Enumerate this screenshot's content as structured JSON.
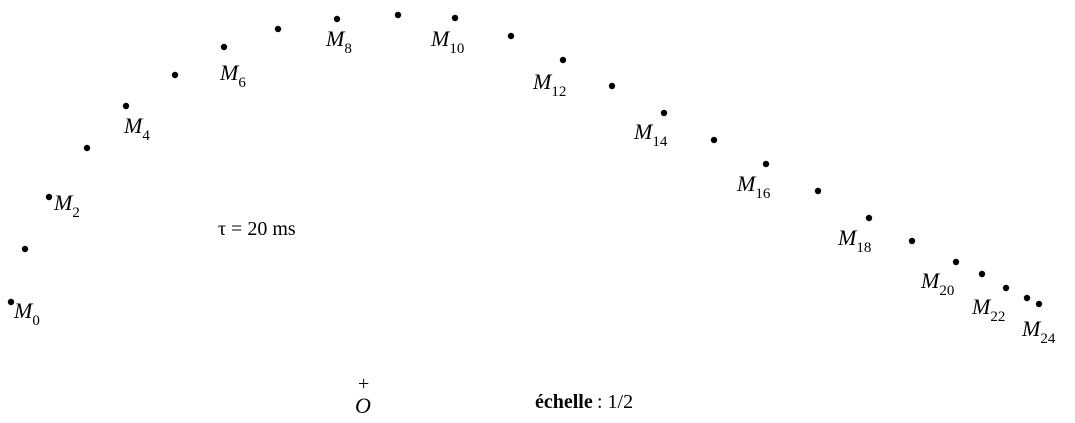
{
  "diagram": {
    "point_letter": "M",
    "point_indices": [
      "0",
      "2",
      "4",
      "6",
      "8",
      "10",
      "12",
      "14",
      "16",
      "18",
      "20",
      "22",
      "24"
    ],
    "tau_text": "τ = 20 ms",
    "origin_text": "O",
    "origin_mark": "+",
    "scale_label": "échelle",
    "scale_value": ": 1/2"
  },
  "colors": {
    "ink": "#000000",
    "background": "#ffffff"
  }
}
